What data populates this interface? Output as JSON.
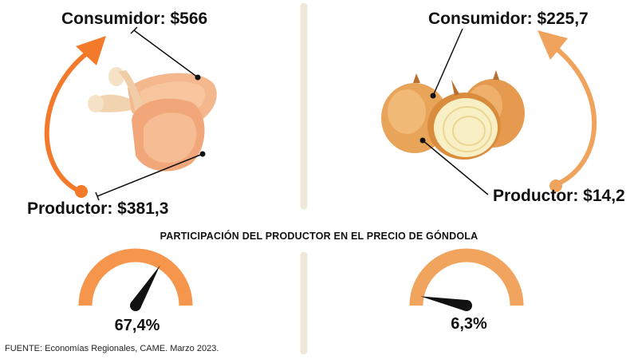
{
  "colors": {
    "orange_dark": "#f47a2b",
    "orange_light": "#f0a35c",
    "gauge_left": "#f6964c",
    "gauge_right": "#f0a45e",
    "divider": "#efe8d8"
  },
  "left": {
    "consumer_label": "Consumidor: $566",
    "producer_label": "Productor: $381,3",
    "product_icon": "chicken-drumsticks-image",
    "share_label": "67,4%"
  },
  "right": {
    "consumer_label": "Consumidor: $225,7",
    "producer_label": "Productor: $14,2",
    "product_icon": "onions-image",
    "share_label": "6,3%"
  },
  "center_title": "PARTICIPACIÓN DEL PRODUCTOR EN EL PRECIO DE GÓNDOLA",
  "source": "FUENTE: Economías Regionales, CAME. Marzo 2023.",
  "chart_data": [
    {
      "type": "gauge",
      "product": "",
      "values": {
        "producer": 381.3,
        "consumer": 566
      },
      "share_percent": 67.4,
      "range": [
        0,
        100
      ]
    },
    {
      "type": "gauge",
      "product": "",
      "values": {
        "producer": 14.2,
        "consumer": 225.7
      },
      "share_percent": 6.3,
      "range": [
        0,
        100
      ]
    }
  ]
}
